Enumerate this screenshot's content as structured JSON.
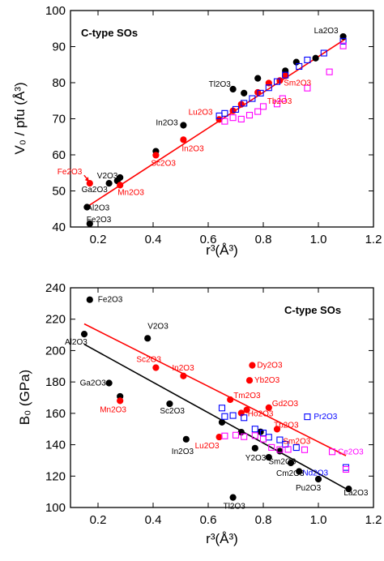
{
  "chart_data": [
    {
      "type": "scatter",
      "title": "C-type SOs",
      "xlabel": "r³(Å³)",
      "ylabel": "V₀ / pfu (Å³)",
      "xlim": [
        0.1,
        1.2
      ],
      "ylim": [
        40,
        100
      ],
      "xticks": [
        "0.2",
        "0.4",
        "0.6",
        "0.8",
        "1.0",
        "1.2"
      ],
      "yticks": [
        "40",
        "50",
        "60",
        "70",
        "80",
        "90",
        "100"
      ],
      "grid": false,
      "colors": {
        "black": "#000000",
        "red": "#ff0000",
        "blue": "#0000ff",
        "magenta": "#ff00ff"
      },
      "series": [
        {
          "style": "black-filled-circle",
          "x": [
            0.16,
            0.17,
            0.24,
            0.27,
            0.28,
            0.41,
            0.51,
            0.69,
            0.73,
            0.78,
            0.88,
            0.92,
            0.99,
            1.09
          ],
          "y": [
            45.5,
            40.9,
            52.1,
            52.8,
            53.7,
            61.0,
            68.2,
            78.2,
            77.1,
            81.2,
            83.3,
            85.7,
            86.8,
            92.8
          ]
        },
        {
          "style": "red-filled-circle",
          "x": [
            0.17,
            0.28,
            0.41,
            0.51,
            0.64,
            0.69,
            0.72,
            0.78,
            0.82,
            0.86,
            0.88
          ],
          "y": [
            52.1,
            51.6,
            59.9,
            64.2,
            69.8,
            72.2,
            74.0,
            77.3,
            79.9,
            80.6,
            81.9
          ]
        },
        {
          "style": "blue-open-square",
          "x": [
            0.64,
            0.66,
            0.7,
            0.73,
            0.76,
            0.79,
            0.82,
            0.85,
            0.88,
            0.93,
            0.96,
            1.02,
            1.09
          ],
          "y": [
            70.8,
            71.5,
            72.6,
            74.3,
            75.6,
            77.1,
            78.6,
            80.3,
            82.1,
            84.5,
            86.3,
            88.2,
            91.5
          ]
        },
        {
          "style": "magenta-open-square",
          "x": [
            0.66,
            0.69,
            0.72,
            0.75,
            0.78,
            0.8,
            0.85,
            0.87,
            0.96,
            1.04,
            1.09
          ],
          "y": [
            69.3,
            70.3,
            69.9,
            71.0,
            72.0,
            73.4,
            74.1,
            75.6,
            78.5,
            83.0,
            90.2
          ]
        }
      ],
      "fit_line": {
        "color": "red",
        "x": [
          0.15,
          1.1
        ],
        "y": [
          45.1,
          92.2
        ]
      },
      "annotations": [
        {
          "text": "La2O3",
          "x": 1.09,
          "y": 92.8,
          "color": "black"
        },
        {
          "text": "Tl2O3",
          "x": 0.69,
          "y": 78.2,
          "color": "black"
        },
        {
          "text": "Lu2O3",
          "x": 0.64,
          "y": 69.8,
          "color": "red"
        },
        {
          "text": "Sm2O3",
          "x": 0.88,
          "y": 81.9,
          "color": "red"
        },
        {
          "text": "Tb2O3",
          "x": 0.82,
          "y": 77.3,
          "color": "red"
        },
        {
          "text": "In2O3",
          "x": 0.51,
          "y": 68.2,
          "color": "black"
        },
        {
          "text": "In2O3",
          "x": 0.51,
          "y": 64.2,
          "color": "red"
        },
        {
          "text": "Sc2O3",
          "x": 0.41,
          "y": 59.9,
          "color": "red"
        },
        {
          "text": "Fe2O3",
          "x": 0.17,
          "y": 52.1,
          "color": "red"
        },
        {
          "text": "V2O3",
          "x": 0.27,
          "y": 52.8,
          "color": "black"
        },
        {
          "text": "Ga2O3",
          "x": 0.24,
          "y": 52.1,
          "color": "black"
        },
        {
          "text": "Mn2O3",
          "x": 0.28,
          "y": 51.6,
          "color": "red"
        },
        {
          "text": "Al2O3",
          "x": 0.16,
          "y": 45.5,
          "color": "black"
        },
        {
          "text": "Fe2O3",
          "x": 0.17,
          "y": 40.9,
          "color": "black"
        }
      ]
    },
    {
      "type": "scatter",
      "title": "C-type SOs",
      "xlabel": "r³(Å³)",
      "ylabel": "B₀ (GPa)",
      "xlim": [
        0.1,
        1.2
      ],
      "ylim": [
        100,
        240
      ],
      "xticks": [
        "0.2",
        "0.4",
        "0.6",
        "0.8",
        "1.0",
        "1.2"
      ],
      "yticks": [
        "100",
        "120",
        "140",
        "160",
        "180",
        "200",
        "220",
        "240"
      ],
      "grid": false,
      "colors": {
        "black": "#000000",
        "red": "#ff0000",
        "blue": "#0000ff",
        "magenta": "#ff00ff"
      },
      "series": [
        {
          "style": "black-filled-circle",
          "x": [
            0.15,
            0.17,
            0.24,
            0.28,
            0.38,
            0.46,
            0.52,
            0.65,
            0.69,
            0.72,
            0.77,
            0.79,
            0.82,
            0.86,
            0.9,
            0.93,
            1.0,
            1.11
          ],
          "y": [
            210.5,
            232.4,
            179.3,
            170.8,
            207.8,
            166.1,
            143.5,
            154.3,
            106.4,
            148.0,
            137.8,
            148.2,
            132.0,
            135.9,
            128.4,
            123.0,
            118.1,
            111.8
          ]
        },
        {
          "style": "red-filled-circle",
          "x": [
            0.28,
            0.41,
            0.51,
            0.64,
            0.68,
            0.72,
            0.74,
            0.75,
            0.76,
            0.82,
            0.85
          ],
          "y": [
            168.0,
            189.1,
            183.8,
            144.9,
            168.7,
            160.2,
            162.2,
            181.0,
            190.6,
            163.6,
            149.9
          ]
        },
        {
          "style": "blue-open-square",
          "x": [
            0.65,
            0.66,
            0.69,
            0.73,
            0.77,
            0.8,
            0.82,
            0.86,
            0.88,
            0.92,
            0.96,
            1.1
          ],
          "y": [
            163.4,
            158.0,
            158.6,
            157.2,
            150.0,
            147.5,
            144.8,
            143.1,
            140.3,
            138.2,
            157.8,
            125.5
          ]
        },
        {
          "style": "magenta-open-square",
          "x": [
            0.66,
            0.7,
            0.73,
            0.77,
            0.8,
            0.83,
            0.86,
            0.89,
            0.95,
            1.05,
            1.1
          ],
          "y": [
            145.6,
            146.1,
            145.1,
            145.8,
            143.6,
            138.3,
            136.9,
            137.0,
            136.8,
            135.5,
            124.3
          ]
        }
      ],
      "fit_lines": [
        {
          "color": "red",
          "x": [
            0.15,
            1.1
          ],
          "y": [
            217.0,
            133.0
          ]
        },
        {
          "color": "black",
          "x": [
            0.15,
            1.1
          ],
          "y": [
            204.0,
            112.0
          ]
        }
      ],
      "annotations": [
        {
          "text": "Fe2O3",
          "x": 0.17,
          "y": 232.4,
          "color": "black"
        },
        {
          "text": "V2O3",
          "x": 0.38,
          "y": 207.8,
          "color": "black"
        },
        {
          "text": "Al2O3",
          "x": 0.15,
          "y": 210.5,
          "color": "black"
        },
        {
          "text": "Sc2O3",
          "x": 0.41,
          "y": 189.1,
          "color": "red"
        },
        {
          "text": "In2O3",
          "x": 0.51,
          "y": 183.8,
          "color": "red"
        },
        {
          "text": "Ga2O3",
          "x": 0.24,
          "y": 179.3,
          "color": "black"
        },
        {
          "text": "Mn2O3",
          "x": 0.28,
          "y": 168.0,
          "color": "red"
        },
        {
          "text": "Sc2O3",
          "x": 0.46,
          "y": 166.1,
          "color": "black"
        },
        {
          "text": "In2O3",
          "x": 0.52,
          "y": 143.5,
          "color": "black"
        },
        {
          "text": "Yb2O3",
          "x": 0.75,
          "y": 181.0,
          "color": "red"
        },
        {
          "text": "Dy2O3",
          "x": 0.76,
          "y": 190.6,
          "color": "red"
        },
        {
          "text": "Tm2O3",
          "x": 0.68,
          "y": 168.7,
          "color": "red"
        },
        {
          "text": "Gd2O3",
          "x": 0.82,
          "y": 163.6,
          "color": "red"
        },
        {
          "text": "Ho2O3",
          "x": 0.72,
          "y": 160.2,
          "color": "red"
        },
        {
          "text": "Tb2O3",
          "x": 0.85,
          "y": 149.9,
          "color": "red"
        },
        {
          "text": "Sm2O3",
          "x": 0.86,
          "y": 143.1,
          "color": "red"
        },
        {
          "text": "Pr2O3",
          "x": 0.96,
          "y": 157.8,
          "color": "blue"
        },
        {
          "text": "Lu2O3",
          "x": 0.64,
          "y": 144.9,
          "color": "red"
        },
        {
          "text": "Y2O3",
          "x": 0.77,
          "y": 137.8,
          "color": "black"
        },
        {
          "text": "Ce2O3",
          "x": 1.05,
          "y": 135.5,
          "color": "magenta"
        },
        {
          "text": "Sm2O3",
          "x": 0.86,
          "y": 135.9,
          "color": "black"
        },
        {
          "text": "Nd2O3",
          "x": 0.96,
          "y": 125.5,
          "color": "blue"
        },
        {
          "text": "Cm2O3",
          "x": 0.9,
          "y": 128.4,
          "color": "black"
        },
        {
          "text": "Pu2O3",
          "x": 1.0,
          "y": 118.1,
          "color": "black"
        },
        {
          "text": "La2O3",
          "x": 1.11,
          "y": 111.8,
          "color": "black"
        },
        {
          "text": "Tl2O3",
          "x": 0.69,
          "y": 106.4,
          "color": "black"
        }
      ]
    }
  ]
}
